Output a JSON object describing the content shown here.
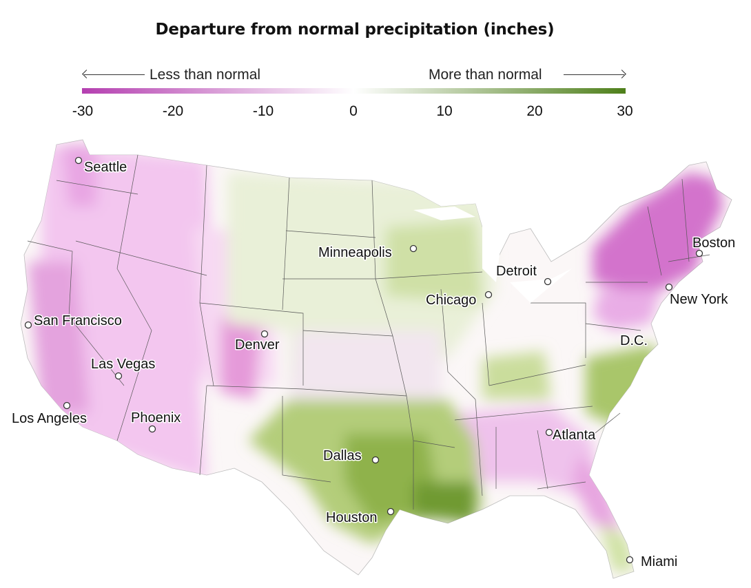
{
  "title": "Departure from normal precipitation (inches)",
  "legend": {
    "less_label": "Less than normal",
    "more_label": "More than normal",
    "ticks": [
      "-30",
      "-20",
      "-10",
      "0",
      "10",
      "20",
      "30"
    ],
    "colors": {
      "min": "#b43fb0",
      "mid": "#ffffff",
      "max": "#4e7f1a"
    }
  },
  "cities": [
    {
      "name": "Seattle"
    },
    {
      "name": "San Francisco"
    },
    {
      "name": "Las Vegas"
    },
    {
      "name": "Los Angeles"
    },
    {
      "name": "Phoenix"
    },
    {
      "name": "Denver"
    },
    {
      "name": "Minneapolis"
    },
    {
      "name": "Detroit"
    },
    {
      "name": "Chicago"
    },
    {
      "name": "Boston"
    },
    {
      "name": "New York"
    },
    {
      "name": "D.C."
    },
    {
      "name": "Dallas"
    },
    {
      "name": "Houston"
    },
    {
      "name": "Atlanta"
    },
    {
      "name": "Miami"
    }
  ]
}
